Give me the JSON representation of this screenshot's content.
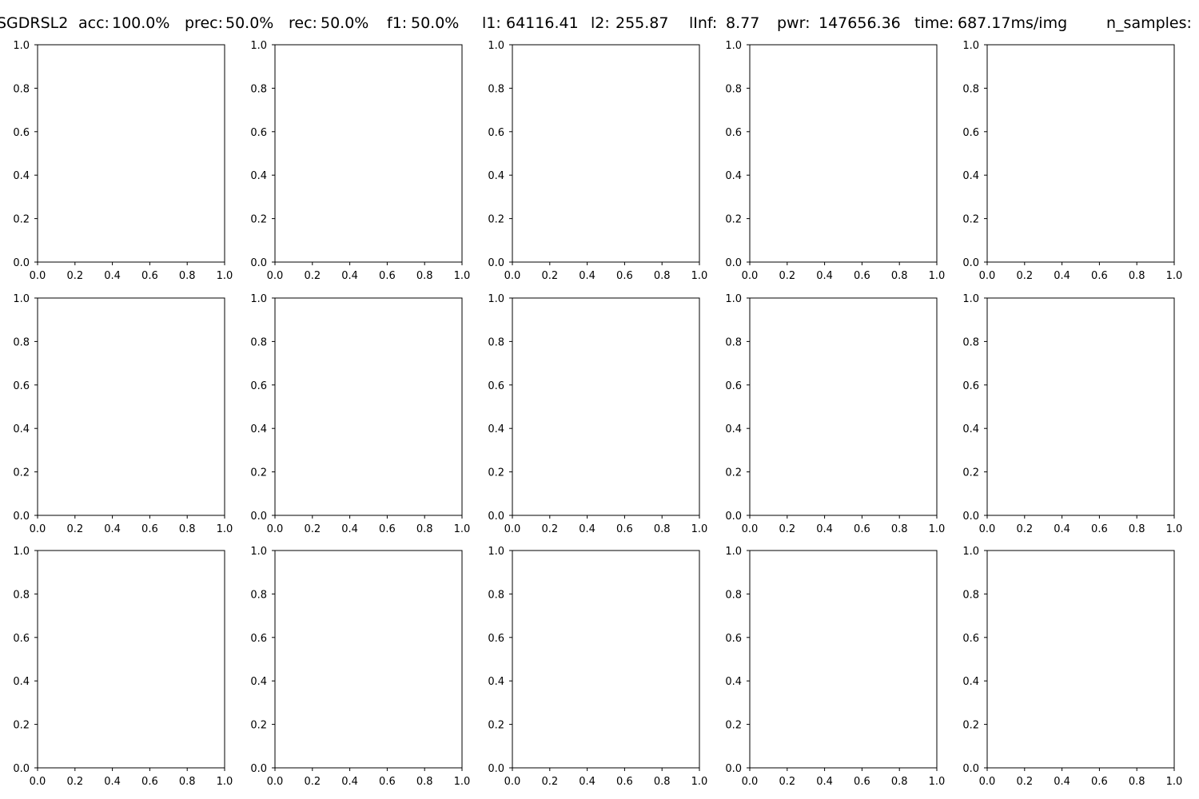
{
  "suptitle": {
    "method": "SGDRSL2",
    "metrics": [
      {
        "label": "acc:",
        "value": "100.0%"
      },
      {
        "label": "prec:",
        "value": "50.0%"
      },
      {
        "label": "rec:",
        "value": "50.0%"
      },
      {
        "label": "f1:",
        "value": "50.0%"
      },
      {
        "label": "l1:",
        "value": "64116.41"
      },
      {
        "label": "l2:",
        "value": "255.87"
      },
      {
        "label": "lInf:",
        "value": "8.77"
      },
      {
        "label": "pwr:",
        "value": "147656.36"
      },
      {
        "label": "time:",
        "value": "687.17ms/img"
      },
      {
        "label": "n_samples:",
        "value": ""
      }
    ]
  },
  "colors": {
    "axes_edge": "#000000",
    "background": "#ffffff",
    "text": "#000000"
  },
  "chart_data": {
    "type": "scatter",
    "grid": false,
    "rows": 3,
    "cols": 5,
    "panels": [
      {
        "xlim": [
          0,
          1
        ],
        "ylim": [
          0,
          1
        ],
        "series": []
      },
      {
        "xlim": [
          0,
          1
        ],
        "ylim": [
          0,
          1
        ],
        "series": []
      },
      {
        "xlim": [
          0,
          1
        ],
        "ylim": [
          0,
          1
        ],
        "series": []
      },
      {
        "xlim": [
          0,
          1
        ],
        "ylim": [
          0,
          1
        ],
        "series": []
      },
      {
        "xlim": [
          0,
          1
        ],
        "ylim": [
          0,
          1
        ],
        "series": []
      },
      {
        "xlim": [
          0,
          1
        ],
        "ylim": [
          0,
          1
        ],
        "series": []
      },
      {
        "xlim": [
          0,
          1
        ],
        "ylim": [
          0,
          1
        ],
        "series": []
      },
      {
        "xlim": [
          0,
          1
        ],
        "ylim": [
          0,
          1
        ],
        "series": []
      },
      {
        "xlim": [
          0,
          1
        ],
        "ylim": [
          0,
          1
        ],
        "series": []
      },
      {
        "xlim": [
          0,
          1
        ],
        "ylim": [
          0,
          1
        ],
        "series": []
      },
      {
        "xlim": [
          0,
          1
        ],
        "ylim": [
          0,
          1
        ],
        "series": []
      },
      {
        "xlim": [
          0,
          1
        ],
        "ylim": [
          0,
          1
        ],
        "series": []
      },
      {
        "xlim": [
          0,
          1
        ],
        "ylim": [
          0,
          1
        ],
        "series": []
      },
      {
        "xlim": [
          0,
          1
        ],
        "ylim": [
          0,
          1
        ],
        "series": []
      },
      {
        "xlim": [
          0,
          1
        ],
        "ylim": [
          0,
          1
        ],
        "series": []
      }
    ],
    "x_ticks": [
      "0.0",
      "0.2",
      "0.4",
      "0.6",
      "0.8",
      "1.0"
    ],
    "y_ticks": [
      "0.0",
      "0.2",
      "0.4",
      "0.6",
      "0.8",
      "1.0"
    ]
  }
}
